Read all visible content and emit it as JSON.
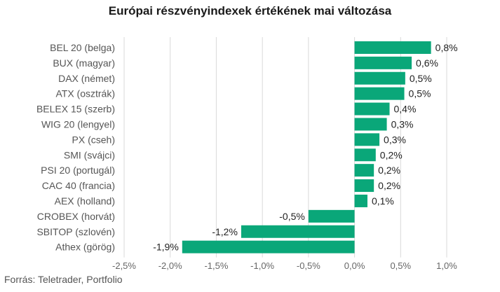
{
  "chart_data": {
    "type": "bar",
    "orientation": "horizontal",
    "title": "Európai részvényindexek értékének mai változása",
    "source": "Forrás: Teletrader, Portfolio",
    "categories": [
      "BEL 20 (belga)",
      "BUX (magyar)",
      "DAX (német)",
      "ATX (osztrák)",
      "BELEX 15 (szerb)",
      "WIG 20 (lengyel)",
      "PX (cseh)",
      "SMI (svájci)",
      "PSI 20 (portugál)",
      "CAC 40 (francia)",
      "AEX (holland)",
      "CROBEX (horvát)",
      "SBITOP (szlovén)",
      "Athex (görög)"
    ],
    "values": [
      0.83,
      0.62,
      0.55,
      0.54,
      0.38,
      0.35,
      0.27,
      0.23,
      0.21,
      0.21,
      0.14,
      -0.5,
      -1.23,
      -1.87
    ],
    "data_labels": [
      "0,8%",
      "0,6%",
      "0,5%",
      "0,5%",
      "0,4%",
      "0,3%",
      "0,3%",
      "0,2%",
      "0,2%",
      "0,2%",
      "0,1%",
      "-0,5%",
      "-1,2%",
      "-1,9%"
    ],
    "xlim": [
      -2.5,
      1.0
    ],
    "x_ticks": [
      -2.5,
      -2.0,
      -1.5,
      -1.0,
      -0.5,
      0.0,
      0.5,
      1.0
    ],
    "x_tick_labels": [
      "-2,5%",
      "-2,0%",
      "-1,5%",
      "-1,0%",
      "-0,5%",
      "0,0%",
      "0,5%",
      "1,0%"
    ],
    "grid": "vertical",
    "bar_color": "#0aa779"
  }
}
